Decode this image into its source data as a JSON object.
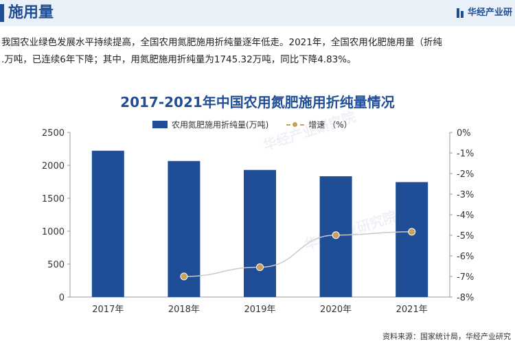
{
  "header": {
    "title": "施用量",
    "brand": "华经产业研"
  },
  "intro": {
    "line1": "我国农业绿色发展水平持续提高，全国农用氮肥施用折纯量逐年低走。2021年，全国农用化肥施用量（折纯",
    "line2": ".万吨，已连续6年下降；其中，用氮肥施用折纯量为1745.32万吨，同比下降4.83%。"
  },
  "watermark": {
    "text1": "华经产业研究院",
    "text2": "华经产业研究院"
  },
  "source": "资料来源：国家统计局，华经产业研究",
  "colors": {
    "bar": "#1f4e96",
    "line": "#c9c9c9",
    "marker": "#c9a15a",
    "title": "#1f4e96"
  },
  "chart_data": {
    "type": "bar",
    "title": "2017-2021年中国农用氮肥施用折纯量情况",
    "categories": [
      "2017年",
      "2018年",
      "2019年",
      "2020年",
      "2021年"
    ],
    "series": [
      {
        "name": "农用氮肥施用折纯量(万吨)",
        "type": "bar",
        "axis": "left",
        "values": [
          2221.8,
          2065.4,
          1930.2,
          1833.9,
          1745.32
        ]
      },
      {
        "name": "增速 （%）",
        "type": "line",
        "axis": "right",
        "values": [
          null,
          -7.0,
          -6.55,
          -4.99,
          -4.83
        ]
      }
    ],
    "y_left": {
      "ticks": [
        "0",
        "500",
        "1000",
        "1500",
        "2000",
        "2500"
      ],
      "lim": [
        0,
        2500
      ]
    },
    "y_right": {
      "ticks": [
        "0%",
        "-1%",
        "-2%",
        "-3%",
        "-4%",
        "-5%",
        "-6%",
        "-7%",
        "-8%"
      ],
      "lim": [
        -8,
        0
      ]
    },
    "grid": false,
    "legend": "top-center"
  }
}
